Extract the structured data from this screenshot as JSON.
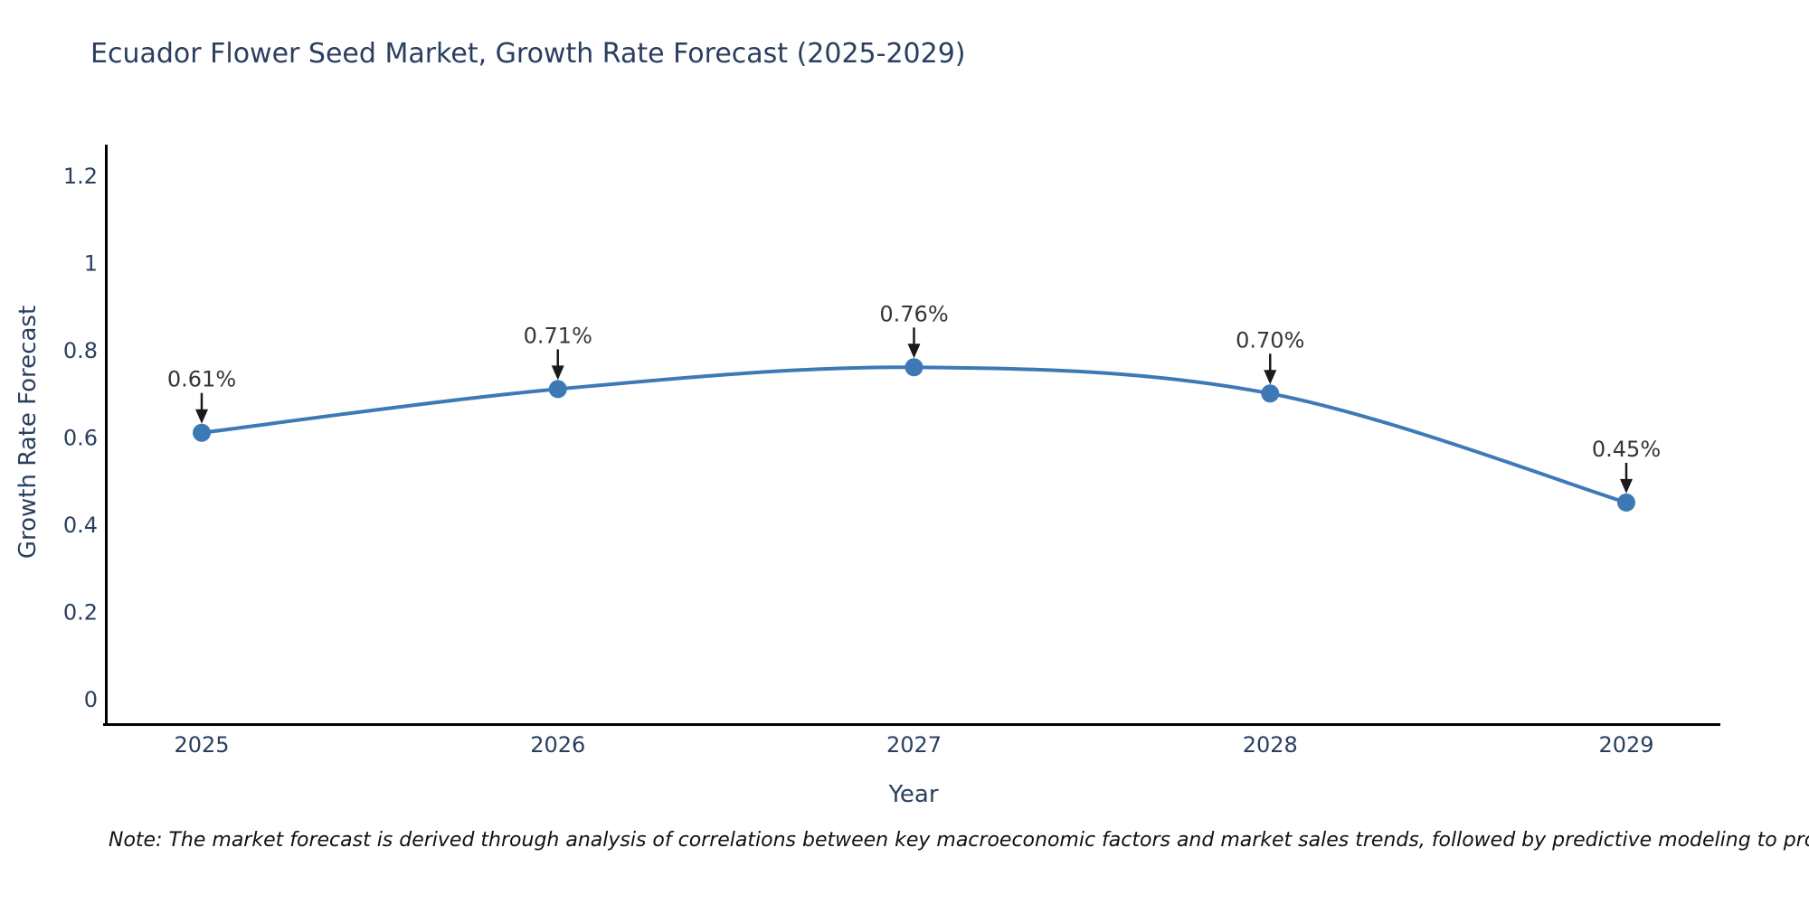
{
  "page": {
    "background": "#ffffff"
  },
  "note": {
    "text": "Note: The market forecast is derived through analysis of correlations between key macroeconomic factors and market sales trends, followed by predictive modeling to project future sales"
  },
  "chart_data": {
    "type": "line",
    "title": "Ecuador Flower Seed Market, Growth Rate Forecast (2025-2029)",
    "xlabel": "Year",
    "ylabel": "Growth Rate Forecast",
    "categories": [
      "2025",
      "2026",
      "2027",
      "2028",
      "2029"
    ],
    "x": [
      2025,
      2026,
      2027,
      2028,
      2029
    ],
    "values": [
      0.61,
      0.71,
      0.76,
      0.7,
      0.45
    ],
    "point_labels": [
      "0.61%",
      "0.71%",
      "0.76%",
      "0.70%",
      "0.45%"
    ],
    "yticks": [
      "0",
      "0.2",
      "0.4",
      "0.6",
      "0.8",
      "1",
      "1.2"
    ],
    "ylim": [
      0,
      1.27
    ],
    "grid": false,
    "legend_position": "none",
    "line_style": "spline",
    "colors": {
      "line": "#3d7ab5",
      "marker": "#3d7ab5",
      "axis": "#000000",
      "tick_label": "#2a3f5f",
      "title": "#2a3f5f",
      "annotation_text": "#363636",
      "annotation_arrow": "#1a1a1a"
    }
  }
}
